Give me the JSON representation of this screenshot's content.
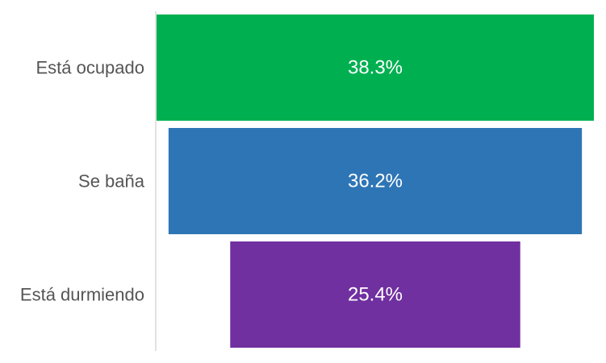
{
  "chart_data": {
    "type": "bar",
    "orientation": "horizontal-funnel",
    "title": "",
    "xlabel": "",
    "ylabel": "",
    "categories": [
      "Está ocupado",
      "Se baña",
      "Está durmiendo"
    ],
    "values": [
      38.3,
      36.2,
      25.4
    ],
    "value_labels": [
      "38.3%",
      "36.2%",
      "25.4%"
    ],
    "colors": [
      "#00b050",
      "#2e75b6",
      "#7030a0"
    ],
    "xlim": [
      0,
      38.3
    ],
    "grid": false,
    "legend": "none"
  }
}
